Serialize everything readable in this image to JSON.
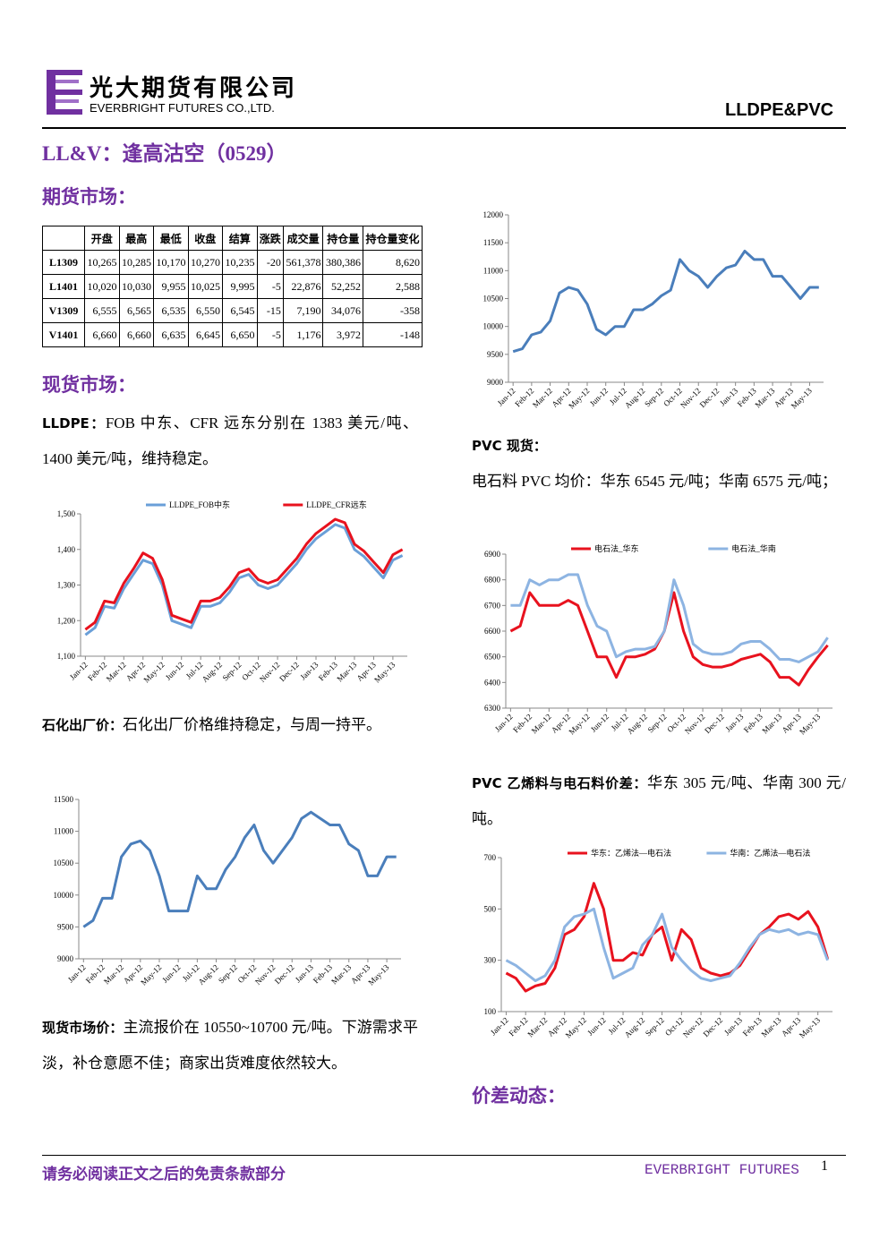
{
  "header": {
    "company_cn": "光大期货有限公司",
    "company_en": "EVERBRIGHT FUTURES CO.,LTD.",
    "product": "LLDPE&PVC"
  },
  "title": "LL&V：逢高沽空（0529）",
  "sections": {
    "futures": "期货市场：",
    "spot": "现货市场：",
    "spread": "价差动态："
  },
  "table": {
    "header": [
      "开盘",
      "最高",
      "最低",
      "收盘",
      "结算",
      "涨跌",
      "成交量",
      "持仓量",
      "持仓量变化"
    ],
    "rows": [
      [
        "L1309",
        "10,265",
        "10,285",
        "10,170",
        "10,270",
        "10,235",
        "-20",
        "561,378",
        "380,386",
        "8,620"
      ],
      [
        "L1401",
        "10,020",
        "10,030",
        "9,955",
        "10,025",
        "9,995",
        "-5",
        "22,876",
        "52,252",
        "2,588"
      ],
      [
        "V1309",
        "6,555",
        "6,565",
        "6,535",
        "6,550",
        "6,545",
        "-15",
        "7,190",
        "34,076",
        "-358"
      ],
      [
        "V1401",
        "6,660",
        "6,660",
        "6,635",
        "6,645",
        "6,650",
        "-5",
        "1,176",
        "3,972",
        "-148"
      ]
    ]
  },
  "paragraphs": [
    {
      "label": "LLDPE：",
      "text": "FOB 中东、CFR 远东分别在 1383 美元/吨、1400 美元/吨，维持稳定。"
    },
    {
      "label": "石化出厂价：",
      "text": "石化出厂价格维持稳定，与周一持平。"
    },
    {
      "label": "现货市场价：",
      "text": "主流报价在 10550~10700 元/吨。下游需求平淡，补仓意愿不佳；商家出货难度依然较大。"
    },
    {
      "label": "PVC 现货：",
      "text": "电石料 PVC 均价：华东 6545 元/吨；华南 6575 元/吨；"
    },
    {
      "label": "PVC 乙烯料与电石料价差：",
      "text": "华东 305 元/吨、华南 300 元/吨。"
    }
  ],
  "footer": {
    "disclaimer": "请务必阅读正文之后的免责条款部分",
    "brand": "EVERBRIGHT FUTURES",
    "page": "1"
  },
  "chart_data": [
    {
      "type": "line",
      "categories": [
        "Jan-12",
        null,
        "Feb-12",
        null,
        "Mar-12",
        null,
        "Apr-12",
        null,
        "May-12",
        null,
        "Jun-12",
        null,
        "Jul-12",
        null,
        "Aug-12",
        null,
        "Sep-12",
        null,
        "Oct-12",
        null,
        "Nov-12",
        null,
        "Dec-12",
        null,
        "Jan-13",
        null,
        "Feb-13",
        null,
        "Mar-13",
        null,
        "Apr-13",
        null,
        "May-13",
        null
      ],
      "series": [
        {
          "color": "#4a7ebb",
          "values": [
            9550,
            9600,
            9850,
            9900,
            10100,
            10600,
            10700,
            10650,
            10400,
            9950,
            9850,
            10000,
            10000,
            10300,
            10300,
            10400,
            10550,
            10650,
            11200,
            11000,
            10900,
            10700,
            10900,
            11050,
            11100,
            11350,
            11200,
            11200,
            10900,
            10900,
            10700,
            10500,
            10700,
            10700
          ]
        }
      ],
      "ylim": [
        9000,
        12000
      ],
      "yticks": [
        9000,
        9500,
        10000,
        10500,
        11000,
        11500,
        12000
      ],
      "grid": false
    },
    {
      "type": "line",
      "categories": [
        "Jan-12",
        null,
        "Feb-12",
        null,
        "Mar-12",
        null,
        "Apr-12",
        null,
        "May-12",
        null,
        "Jun-12",
        null,
        "Jul-12",
        null,
        "Aug-12",
        null,
        "Sep-12",
        null,
        "Oct-12",
        null,
        "Nov-12",
        null,
        "Dec-12",
        null,
        "Jan-13",
        null,
        "Feb-13",
        null,
        "Mar-13",
        null,
        "Apr-13",
        null,
        "May-13",
        null
      ],
      "series": [
        {
          "name": "LLDPE_FOB中东",
          "color": "#6a9fd8",
          "values": [
            1160,
            1180,
            1240,
            1235,
            1290,
            1330,
            1370,
            1360,
            1300,
            1200,
            1190,
            1180,
            1240,
            1240,
            1250,
            1280,
            1320,
            1330,
            1300,
            1290,
            1300,
            1330,
            1360,
            1400,
            1430,
            1450,
            1470,
            1460,
            1400,
            1380,
            1350,
            1320,
            1370,
            1383
          ]
        },
        {
          "name": "LLDPE_CFR远东",
          "color": "#e8121e",
          "values": [
            1175,
            1195,
            1255,
            1250,
            1305,
            1345,
            1390,
            1375,
            1315,
            1215,
            1205,
            1195,
            1255,
            1255,
            1265,
            1295,
            1335,
            1345,
            1315,
            1305,
            1315,
            1345,
            1375,
            1415,
            1445,
            1465,
            1485,
            1475,
            1415,
            1395,
            1365,
            1335,
            1385,
            1400
          ]
        }
      ],
      "ylim": [
        1100,
        1500
      ],
      "yticks": [
        {
          "value": 1100,
          "label": "1,100"
        },
        {
          "value": 1200,
          "label": "1,200"
        },
        {
          "value": 1300,
          "label": "1,300"
        },
        {
          "value": 1400,
          "label": "1,400"
        },
        {
          "value": 1500,
          "label": "1,500"
        }
      ],
      "grid": false,
      "legend": "top"
    },
    {
      "type": "line",
      "categories": [
        "Jan-12",
        null,
        "Feb-12",
        null,
        "Mar-12",
        null,
        "Apr-12",
        null,
        "May-12",
        null,
        "Jun-12",
        null,
        "Jul-12",
        null,
        "Aug-12",
        null,
        "Sep-12",
        null,
        "Oct-12",
        null,
        "Nov-12",
        null,
        "Dec-12",
        null,
        "Jan-13",
        null,
        "Feb-13",
        null,
        "Mar-13",
        null,
        "Apr-13",
        null,
        "May-13",
        null
      ],
      "series": [
        {
          "color": "#4a7ebb",
          "values": [
            9500,
            9600,
            9950,
            9950,
            10600,
            10800,
            10850,
            10700,
            10300,
            9750,
            9750,
            9750,
            10300,
            10100,
            10100,
            10400,
            10600,
            10900,
            11100,
            10700,
            10500,
            10700,
            10900,
            11200,
            11300,
            11200,
            11100,
            11100,
            10800,
            10700,
            10300,
            10300,
            10600,
            10600
          ]
        }
      ],
      "ylim": [
        9000,
        11500
      ],
      "yticks": [
        9000,
        9500,
        10000,
        10500,
        11000,
        11500
      ],
      "grid": false
    },
    {
      "type": "line",
      "categories": [
        "Jan-12",
        null,
        "Feb-12",
        null,
        "Mar-12",
        null,
        "Apr-12",
        null,
        "May-12",
        null,
        "Jun-12",
        null,
        "Jul-12",
        null,
        "Aug-12",
        null,
        "Sep-12",
        null,
        "Oct-12",
        null,
        "Nov-12",
        null,
        "Dec-12",
        null,
        "Jan-13",
        null,
        "Feb-13",
        null,
        "Mar-13",
        null,
        "Apr-13",
        null,
        "May-13",
        null
      ],
      "series": [
        {
          "name": "电石法_华东",
          "color": "#e8121e",
          "values": [
            6600,
            6620,
            6750,
            6700,
            6700,
            6700,
            6720,
            6700,
            6600,
            6500,
            6500,
            6420,
            6500,
            6500,
            6510,
            6530,
            6600,
            6750,
            6600,
            6500,
            6470,
            6460,
            6460,
            6470,
            6490,
            6500,
            6510,
            6480,
            6420,
            6420,
            6390,
            6450,
            6500,
            6545
          ]
        },
        {
          "name": "电石法_华南",
          "color": "#8db4e2",
          "values": [
            6700,
            6700,
            6800,
            6780,
            6800,
            6800,
            6820,
            6820,
            6700,
            6620,
            6600,
            6500,
            6520,
            6530,
            6530,
            6540,
            6600,
            6800,
            6700,
            6550,
            6520,
            6510,
            6510,
            6520,
            6550,
            6560,
            6560,
            6530,
            6490,
            6490,
            6480,
            6500,
            6520,
            6575
          ]
        }
      ],
      "ylim": [
        6300,
        6900
      ],
      "yticks": [
        6300,
        6400,
        6500,
        6600,
        6700,
        6800,
        6900
      ],
      "grid": false,
      "legend": "top"
    },
    {
      "type": "line",
      "categories": [
        "Jan-12",
        null,
        "Feb-12",
        null,
        "Mar-12",
        null,
        "Apr-12",
        null,
        "May-12",
        null,
        "Jun-12",
        null,
        "Jul-12",
        null,
        "Aug-12",
        null,
        "Sep-12",
        null,
        "Oct-12",
        null,
        "Nov-12",
        null,
        "Dec-12",
        null,
        "Jan-13",
        null,
        "Feb-13",
        null,
        "Mar-13",
        null,
        "Apr-13",
        null,
        "May-13",
        null
      ],
      "series": [
        {
          "name": "华东：乙烯法—电石法",
          "color": "#e8121e",
          "values": [
            250,
            230,
            180,
            200,
            210,
            270,
            400,
            420,
            470,
            600,
            500,
            300,
            300,
            330,
            320,
            400,
            430,
            300,
            420,
            380,
            270,
            250,
            240,
            250,
            280,
            340,
            400,
            430,
            470,
            480,
            460,
            490,
            430,
            305
          ]
        },
        {
          "name": "华南：乙烯法—电石法",
          "color": "#8db4e2",
          "values": [
            300,
            280,
            250,
            220,
            240,
            300,
            430,
            470,
            480,
            500,
            350,
            230,
            250,
            270,
            360,
            400,
            480,
            350,
            300,
            260,
            230,
            220,
            230,
            240,
            290,
            350,
            400,
            420,
            410,
            420,
            400,
            410,
            400,
            300
          ]
        }
      ],
      "ylim": [
        100,
        700
      ],
      "yticks": [
        100,
        300,
        500,
        700
      ],
      "grid": false,
      "legend": "top"
    }
  ]
}
